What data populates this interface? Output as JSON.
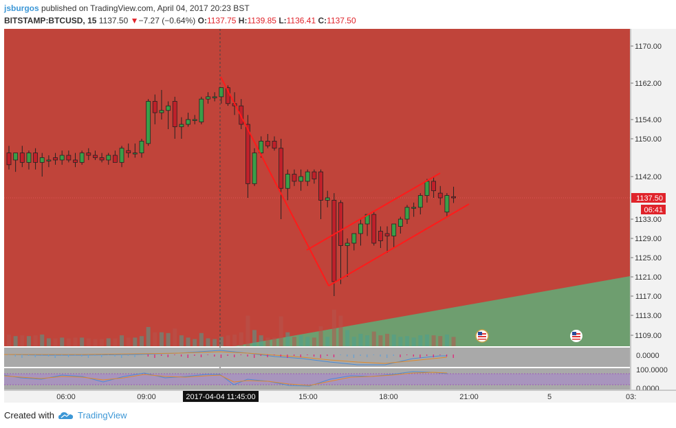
{
  "header": {
    "user": "jsburgos",
    "published": " published on TradingView.com, April 04, 2017 20:23 BST",
    "symbol": "BITSTAMP:BTCUSD, 15",
    "last": "1137.50",
    "change": "−7.27 (−0.64%)",
    "o_label": "O:",
    "o_value": "1137.75",
    "h_label": "H:",
    "h_value": "1139.85",
    "l_label": "L:",
    "l_value": "1136.41",
    "c_label": "C:",
    "c_value": "1137.50"
  },
  "footer": {
    "created_with": "Created with",
    "brand": "TradingView"
  },
  "colors": {
    "bull": "#3a9e48",
    "bear": "#c0202a",
    "bg_red": "#c0443a",
    "bg_green": "#6e9e6f",
    "trend": "#ff1a1a",
    "accent": "#e0232a",
    "axis_bg": "#f2f2f2"
  },
  "chart_data": {
    "type": "candlestick",
    "price_axis_ticks": [
      "1170.00",
      "1162.00",
      "1154.00",
      "1150.00",
      "1142.00",
      "1133.00",
      "1129.00",
      "1125.00",
      "1121.00",
      "1117.00",
      "1113.00",
      "1109.00"
    ],
    "time_axis_ticks": [
      "06:00",
      "09:00",
      "15:00",
      "18:00",
      "21:00",
      "5",
      "03:"
    ],
    "crosshair_time_label": "2017-04-04 11:45:00",
    "last_price_label": "1137.50",
    "countdown_label": "06:41",
    "indicator1_label": "0.0000",
    "indicator2_label": "100.0000",
    "indicator2_low_label": "0.0000",
    "ylim": [
      1106,
      1173
    ],
    "candles": [
      [
        1147.0,
        1148.5,
        1143.5,
        1144.5
      ],
      [
        1145.5,
        1147.0,
        1143.0,
        1147.0
      ],
      [
        1147.0,
        1148.5,
        1144.0,
        1145.0
      ],
      [
        1145.0,
        1147.5,
        1143.5,
        1147.0
      ],
      [
        1147.0,
        1148.0,
        1143.5,
        1145.0
      ],
      [
        1145.0,
        1147.0,
        1142.0,
        1146.0
      ],
      [
        1145.5,
        1146.5,
        1144.0,
        1145.5
      ],
      [
        1146.0,
        1147.0,
        1144.5,
        1145.5
      ],
      [
        1145.5,
        1147.5,
        1144.5,
        1146.5
      ],
      [
        1146.5,
        1147.5,
        1145.0,
        1145.5
      ],
      [
        1145.5,
        1147.0,
        1144.0,
        1145.0
      ],
      [
        1145.0,
        1147.5,
        1144.5,
        1147.0
      ],
      [
        1147.0,
        1148.0,
        1145.5,
        1146.5
      ],
      [
        1146.5,
        1147.5,
        1145.5,
        1146.0
      ],
      [
        1146.0,
        1147.0,
        1145.0,
        1145.5
      ],
      [
        1145.5,
        1147.0,
        1144.5,
        1146.5
      ],
      [
        1146.5,
        1147.5,
        1145.0,
        1145.0
      ],
      [
        1145.0,
        1148.5,
        1144.0,
        1148.0
      ],
      [
        1147.5,
        1149.0,
        1146.0,
        1147.0
      ],
      [
        1147.0,
        1149.0,
        1146.0,
        1147.0
      ],
      [
        1147.0,
        1150.0,
        1146.0,
        1149.5
      ],
      [
        1149.0,
        1158.5,
        1148.5,
        1158.0
      ],
      [
        1158.0,
        1159.5,
        1153.0,
        1155.5
      ],
      [
        1155.5,
        1160.5,
        1154.0,
        1156.0
      ],
      [
        1156.0,
        1158.0,
        1152.0,
        1157.0
      ],
      [
        1158.0,
        1159.0,
        1150.0,
        1152.5
      ],
      [
        1152.5,
        1154.5,
        1150.0,
        1153.0
      ],
      [
        1153.0,
        1155.5,
        1152.5,
        1154.0
      ],
      [
        1154.0,
        1155.0,
        1153.0,
        1154.0
      ],
      [
        1153.5,
        1159.0,
        1153.0,
        1158.5
      ],
      [
        1158.5,
        1160.0,
        1157.5,
        1159.0
      ],
      [
        1159.0,
        1160.0,
        1158.0,
        1159.0
      ],
      [
        1159.0,
        1161.0,
        1157.5,
        1161.0
      ],
      [
        1161.0,
        1161.5,
        1157.0,
        1157.5
      ],
      [
        1157.5,
        1160.0,
        1155.0,
        1157.0
      ],
      [
        1157.0,
        1158.5,
        1152.0,
        1153.0
      ],
      [
        1153.0,
        1155.0,
        1137.5,
        1140.5
      ],
      [
        1140.5,
        1148.0,
        1140.0,
        1147.0
      ],
      [
        1147.0,
        1150.5,
        1146.0,
        1149.5
      ],
      [
        1149.5,
        1151.0,
        1148.0,
        1148.5
      ],
      [
        1149.5,
        1150.5,
        1147.5,
        1148.0
      ],
      [
        1148.0,
        1150.0,
        1133.0,
        1139.5
      ],
      [
        1139.5,
        1143.5,
        1137.0,
        1142.5
      ],
      [
        1142.5,
        1143.5,
        1140.0,
        1141.0
      ],
      [
        1141.0,
        1143.5,
        1139.0,
        1142.0
      ],
      [
        1141.0,
        1143.5,
        1140.0,
        1143.0
      ],
      [
        1143.0,
        1143.5,
        1140.5,
        1141.5
      ],
      [
        1143.0,
        1143.5,
        1133.0,
        1137.0
      ],
      [
        1137.0,
        1139.0,
        1135.5,
        1137.5
      ],
      [
        1137.0,
        1138.5,
        1117.0,
        1120.0
      ],
      [
        1136.5,
        1137.0,
        1119.5,
        1127.5
      ],
      [
        1127.5,
        1129.0,
        1121.0,
        1128.0
      ],
      [
        1128.0,
        1130.0,
        1126.5,
        1130.0
      ],
      [
        1130.0,
        1133.0,
        1127.5,
        1132.0
      ],
      [
        1132.0,
        1134.0,
        1129.5,
        1134.0
      ],
      [
        1134.0,
        1134.5,
        1127.5,
        1128.0
      ],
      [
        1130.5,
        1131.5,
        1127.0,
        1128.5
      ],
      [
        1130.0,
        1131.5,
        1126.0,
        1129.5
      ],
      [
        1129.5,
        1132.0,
        1127.0,
        1132.0
      ],
      [
        1131.5,
        1133.5,
        1130.0,
        1133.0
      ],
      [
        1133.0,
        1136.0,
        1132.0,
        1135.5
      ],
      [
        1135.5,
        1136.5,
        1133.5,
        1135.5
      ],
      [
        1135.5,
        1138.5,
        1134.0,
        1138.0
      ],
      [
        1138.0,
        1141.5,
        1136.5,
        1141.0
      ],
      [
        1141.0,
        1142.0,
        1137.5,
        1139.0
      ],
      [
        1138.5,
        1140.0,
        1136.0,
        1137.5
      ],
      [
        1134.5,
        1138.5,
        1133.5,
        1138.0
      ],
      [
        1137.75,
        1139.85,
        1136.41,
        1137.5
      ]
    ]
  }
}
